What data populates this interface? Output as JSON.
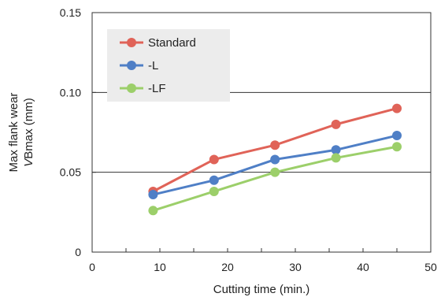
{
  "chart_data": {
    "type": "line",
    "x": [
      9,
      18,
      27,
      36,
      45
    ],
    "series": [
      {
        "name": "Standard",
        "values": [
          0.038,
          0.058,
          0.067,
          0.08,
          0.09
        ],
        "color": "#e06358"
      },
      {
        "name": "-L",
        "values": [
          0.036,
          0.045,
          0.058,
          0.064,
          0.073
        ],
        "color": "#4f7fc6"
      },
      {
        "name": "-LF",
        "values": [
          0.026,
          0.038,
          0.05,
          0.059,
          0.066
        ],
        "color": "#9ccf6a"
      }
    ],
    "xlabel": "Cutting time (min.)",
    "ylabel": [
      "Max flank wear",
      "Bmax (mm)"
    ],
    "ylabel_italic_prefix": "V",
    "xlim": [
      0,
      50
    ],
    "ylim": [
      0,
      0.15
    ],
    "xticks": [
      "0",
      "10",
      "20",
      "30",
      "40",
      "50"
    ],
    "xtick_values": [
      0,
      10,
      20,
      30,
      40,
      50
    ],
    "yticks": [
      "0",
      "0.05",
      "0.10",
      "0.15"
    ],
    "ytick_values": [
      0,
      0.05,
      0.1,
      0.15
    ],
    "grid": "horizontal",
    "legend_position": "top-left",
    "legend_background": "#ececec"
  }
}
